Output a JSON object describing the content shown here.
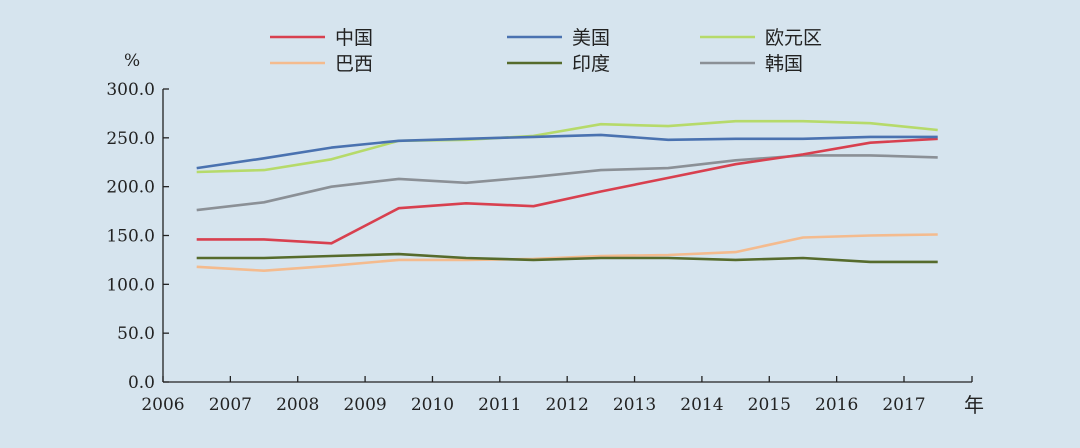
{
  "chart_data": {
    "type": "line",
    "ylabel": "%",
    "xunit": "年",
    "ylim": [
      0,
      300
    ],
    "yticks": [
      "0.0",
      "50.0",
      "100.0",
      "150.0",
      "200.0",
      "250.0",
      "300.0"
    ],
    "xticks": [
      "2006",
      "2007",
      "2008",
      "2009",
      "2010",
      "2011",
      "2012",
      "2013",
      "2014",
      "2015",
      "2016",
      "2017"
    ],
    "x": [
      2006.5,
      2007.5,
      2008.5,
      2009.5,
      2010.5,
      2011.5,
      2012.5,
      2013.5,
      2014.5,
      2015.5,
      2016.5,
      2017.5
    ],
    "legend_position": "top",
    "grid": false,
    "series": [
      {
        "name": "中国",
        "color": "#d8404f",
        "values": [
          146,
          146,
          142,
          178,
          183,
          180,
          195,
          209,
          223,
          233,
          245,
          249
        ]
      },
      {
        "name": "美国",
        "color": "#4a72b0",
        "values": [
          219,
          229,
          240,
          247,
          249,
          251,
          253,
          248,
          249,
          249,
          251,
          251
        ]
      },
      {
        "name": "欧元区",
        "color": "#b6da6a",
        "values": [
          215,
          217,
          228,
          247,
          248,
          252,
          264,
          262,
          267,
          267,
          265,
          258
        ]
      },
      {
        "name": "巴西",
        "color": "#f4bb8e",
        "values": [
          118,
          114,
          119,
          125,
          125,
          126,
          129,
          130,
          133,
          148,
          150,
          151
        ]
      },
      {
        "name": "印度",
        "color": "#566b2c",
        "values": [
          127,
          127,
          129,
          131,
          127,
          125,
          127,
          127,
          125,
          127,
          123,
          123
        ]
      },
      {
        "name": "韩国",
        "color": "#8b9096",
        "values": [
          176,
          184,
          200,
          208,
          204,
          210,
          217,
          219,
          227,
          232,
          232,
          230
        ]
      }
    ]
  }
}
